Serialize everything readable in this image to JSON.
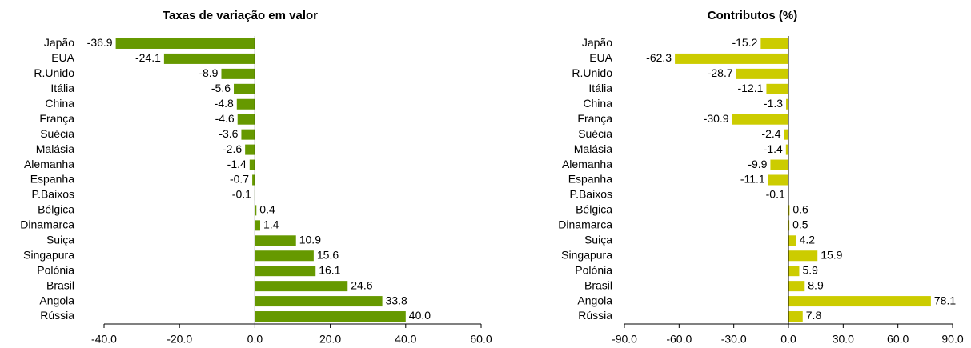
{
  "chart_data": [
    {
      "type": "bar",
      "orientation": "horizontal",
      "title": "Taxas de variação em valor",
      "categories": [
        "Japão",
        "EUA",
        "R.Unido",
        "Itália",
        "China",
        "França",
        "Suécia",
        "Malásia",
        "Alemanha",
        "Espanha",
        "P.Baixos",
        "Bélgica",
        "Dinamarca",
        "Suiça",
        "Singapura",
        "Polónia",
        "Brasil",
        "Angola",
        "Rússia"
      ],
      "values": [
        -36.9,
        -24.1,
        -8.9,
        -5.6,
        -4.8,
        -4.6,
        -3.6,
        -2.6,
        -1.4,
        -0.7,
        -0.1,
        0.4,
        1.4,
        10.9,
        15.6,
        16.1,
        24.6,
        33.8,
        40.0
      ],
      "value_labels": [
        "-36.9",
        "-24.1",
        "-8.9",
        "-5.6",
        "-4.8",
        "-4.6",
        "-3.6",
        "-2.6",
        "-1.4",
        "-0.7",
        "-0.1",
        "0.4",
        "1.4",
        "10.9",
        "15.6",
        "16.1",
        "24.6",
        "33.8",
        "40.0"
      ],
      "color": "#669900",
      "xlim": [
        -40,
        60
      ],
      "xticks": [
        {
          "value": -40,
          "label": "-40.0"
        },
        {
          "value": -20,
          "label": "-20.0"
        },
        {
          "value": 0,
          "label": "0.0"
        },
        {
          "value": 20,
          "label": "20.0"
        },
        {
          "value": 40,
          "label": "40.0"
        },
        {
          "value": 60,
          "label": "60.0"
        }
      ]
    },
    {
      "type": "bar",
      "orientation": "horizontal",
      "title": "Contributos (%)",
      "categories": [
        "Japão",
        "EUA",
        "R.Unido",
        "Itália",
        "China",
        "França",
        "Suécia",
        "Malásia",
        "Alemanha",
        "Espanha",
        "P.Baixos",
        "Bélgica",
        "Dinamarca",
        "Suiça",
        "Singapura",
        "Polónia",
        "Brasil",
        "Angola",
        "Rússia"
      ],
      "values": [
        -15.2,
        -62.3,
        -28.7,
        -12.1,
        -1.3,
        -30.9,
        -2.4,
        -1.4,
        -9.9,
        -11.1,
        -0.1,
        0.6,
        0.5,
        4.2,
        15.9,
        5.9,
        8.9,
        78.1,
        7.8
      ],
      "value_labels": [
        "-15.2",
        "-62.3",
        "-28.7",
        "-12.1",
        "-1.3",
        "-30.9",
        "-2.4",
        "-1.4",
        "-9.9",
        "-11.1",
        "-0.1",
        "0.6",
        "0.5",
        "4.2",
        "15.9",
        "5.9",
        "8.9",
        "78.1",
        "7.8"
      ],
      "color": "#cccc00",
      "xlim": [
        -90,
        90
      ],
      "xticks": [
        {
          "value": -90,
          "label": "-90.0"
        },
        {
          "value": -60,
          "label": "-60.0"
        },
        {
          "value": -30,
          "label": "-30.0"
        },
        {
          "value": 0,
          "label": "0.0"
        },
        {
          "value": 30,
          "label": "30.0"
        },
        {
          "value": 60,
          "label": "60.0"
        },
        {
          "value": 90,
          "label": "90.0"
        }
      ]
    }
  ]
}
